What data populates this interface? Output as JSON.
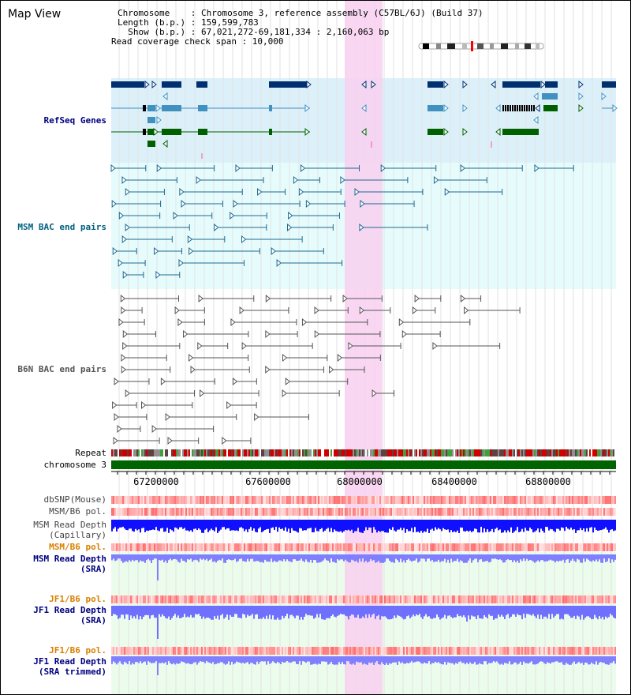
{
  "header": {
    "title": "Map View",
    "chromosome_line": "Chromosome    : Chromosome 3, reference assembly (C57BL/6J) (Build 37)",
    "length_line": "Length (b.p.) : 159,599,783",
    "show_line": "  Show (b.p.) : 67,021,272-69,181,334 : 2,160,063 bp",
    "coverage_line": "Read coverage check span : 10,000"
  },
  "tracks": {
    "refseq": "RefSeq Genes",
    "msm_bac": "MSM BAC end pairs",
    "b6n_bac": "B6N BAC end pairs",
    "repeat": "Repeat",
    "chromosome": "chromosome 3",
    "dbsnp": "dbSNP(Mouse)",
    "msm_b6_pol_1": "MSM/B6 pol.",
    "msm_depth_cap_1": "MSM Read Depth",
    "msm_depth_cap_2": "(Capillary)",
    "msm_b6_pol_2": "MSM/B6 pol.",
    "msm_depth_sra_1": "MSM Read Depth",
    "msm_depth_sra_2": "(SRA)",
    "jf1_b6_pol_1": "JF1/B6 pol.",
    "jf1_depth_sra_1": "JF1 Read Depth",
    "jf1_depth_sra_2": "(SRA)",
    "jf1_b6_pol_2": "JF1/B6 pol.",
    "jf1_depth_trim_1": "JF1 Read Depth",
    "jf1_depth_trim_2": "(SRA trimmed)"
  },
  "axis": {
    "ticks": [
      "67200000",
      "67600000",
      "68000000",
      "68400000",
      "68800000"
    ]
  },
  "colors": {
    "refseq_bg": "#dcf0fa",
    "bac_bg": "#e6fcfc",
    "highlight": "#f8d0f0",
    "gene_dark": "#003070",
    "gene_mid": "#4090c0",
    "gene_green": "#006000",
    "chromosome": "#006400",
    "depth_dark": "#0000ff",
    "depth_light": "#8080ff",
    "lower_bg": "#ecfcec"
  }
}
